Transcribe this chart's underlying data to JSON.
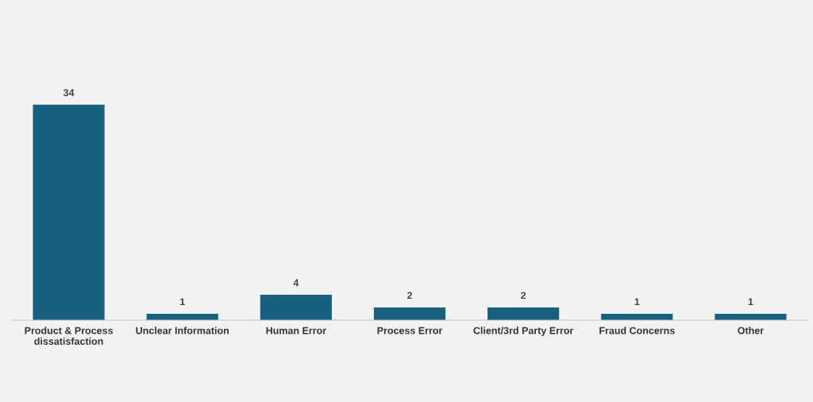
{
  "chart_data": {
    "type": "bar",
    "categories": [
      "Product & Process\ndissatisfaction",
      "Unclear Information",
      "Human Error",
      "Process Error",
      "Client/3rd Party Error",
      "Fraud Concerns",
      "Other"
    ],
    "values": [
      34,
      1,
      4,
      2,
      2,
      1,
      1
    ],
    "color": "#17607f",
    "tick_labels": "x",
    "data_labels": true
  }
}
